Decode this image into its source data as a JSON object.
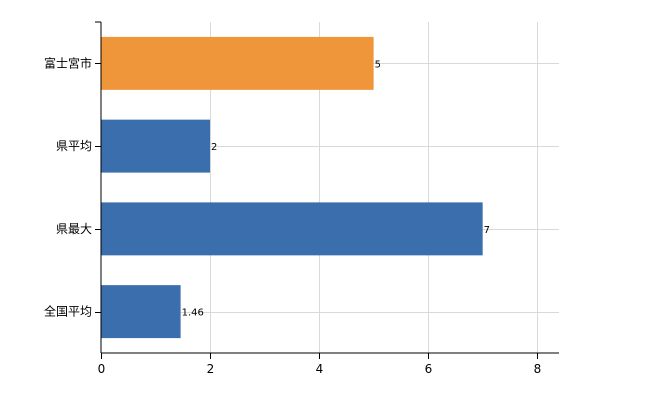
{
  "chart_data": {
    "type": "bar",
    "orientation": "horizontal",
    "title": "",
    "xlabel": "",
    "ylabel": "",
    "categories": [
      "富士宮市",
      "県平均",
      "県最大",
      "全国平均"
    ],
    "values": [
      5,
      2,
      7,
      1.46
    ],
    "data_labels": [
      "5",
      "2",
      "7",
      "1.46"
    ],
    "xlim": [
      0,
      8.4
    ],
    "xticks": [
      0,
      2,
      4,
      6,
      8
    ],
    "xtick_labels": [
      "0",
      "2",
      "4",
      "6",
      "8"
    ],
    "grid": true,
    "legend": "none",
    "colors": {
      "highlight": "#f0963a",
      "default": "#3a6ead"
    },
    "highlight_index": 0
  }
}
